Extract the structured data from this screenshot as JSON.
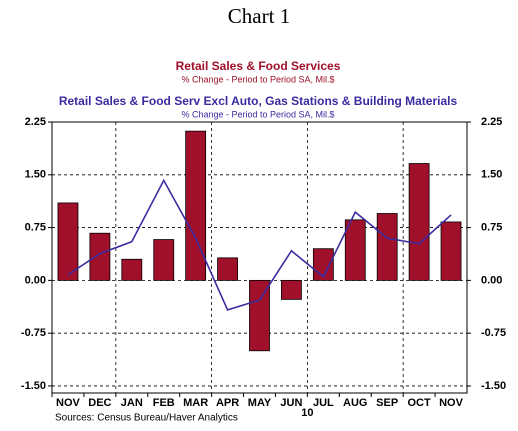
{
  "chart_data": {
    "type": "bar_line",
    "title": "Chart 1",
    "categories": [
      "NOV",
      "DEC",
      "JAN",
      "FEB",
      "MAR",
      "APR",
      "MAY",
      "JUN",
      "JUL",
      "AUG",
      "SEP",
      "OCT",
      "NOV"
    ],
    "year_label": "10",
    "series": [
      {
        "name": "Retail Sales & Food Services",
        "subtitle": "% Change - Period to Period   SA, Mil.$",
        "color": "#a0102a",
        "kind": "bar",
        "values": [
          1.1,
          0.67,
          0.3,
          0.58,
          2.12,
          0.32,
          -1.0,
          -0.27,
          0.45,
          0.86,
          0.95,
          1.66,
          0.83
        ]
      },
      {
        "name": "Retail Sales & Food Serv Excl Auto, Gas Stations & Building Materials",
        "subtitle": "% Change - Period to Period   SA, Mil.$",
        "color": "#3a2ca0",
        "kind": "line",
        "values": [
          0.08,
          0.38,
          0.55,
          1.42,
          0.6,
          -0.42,
          -0.28,
          0.42,
          0.05,
          0.97,
          0.6,
          0.52,
          0.93
        ]
      }
    ],
    "ylim": [
      -1.6,
      2.25
    ],
    "yticks": [
      {
        "value": 2.25,
        "label": "2.25"
      },
      {
        "value": 1.5,
        "label": "1.50"
      },
      {
        "value": 0.75,
        "label": "0.75"
      },
      {
        "value": 0,
        "label": "0.00"
      },
      {
        "value": -0.75,
        "label": "-0.75"
      },
      {
        "value": -1.5,
        "label": "-1.50"
      }
    ],
    "grid": true,
    "source": "Sources:  Census Bureau/Haver Analytics"
  }
}
